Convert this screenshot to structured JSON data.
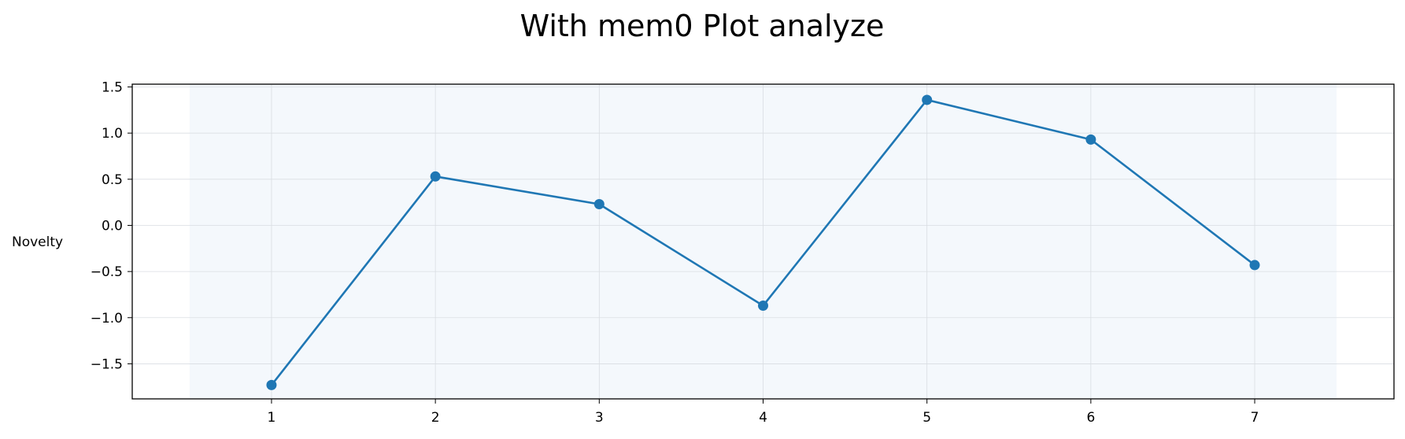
{
  "chart_data": {
    "type": "line",
    "title": "With mem0 Plot analyze",
    "xlabel": "",
    "ylabel": "Novelty",
    "x": [
      1,
      2,
      3,
      4,
      5,
      6,
      7
    ],
    "series": [
      {
        "values": [
          -1.73,
          0.53,
          0.23,
          -0.87,
          1.36,
          0.93,
          -0.43
        ],
        "color": "#1f77b4"
      }
    ],
    "x_ticks": [
      "1",
      "2",
      "3",
      "4",
      "5",
      "6",
      "7"
    ],
    "y_ticks": [
      "1.5",
      "1.0",
      "0.5",
      "0.0",
      "−0.5",
      "−1.0",
      "−1.5"
    ],
    "y_tick_values": [
      1.5,
      1.0,
      0.5,
      0.0,
      -0.5,
      -1.0,
      -1.5
    ],
    "xlim": [
      0.15,
      7.85
    ],
    "ylim": [
      -1.88,
      1.53
    ],
    "shaded_x_range": [
      0.5,
      7.5
    ],
    "shade_color": "#f4f8fc",
    "grid": true,
    "markers": true
  }
}
